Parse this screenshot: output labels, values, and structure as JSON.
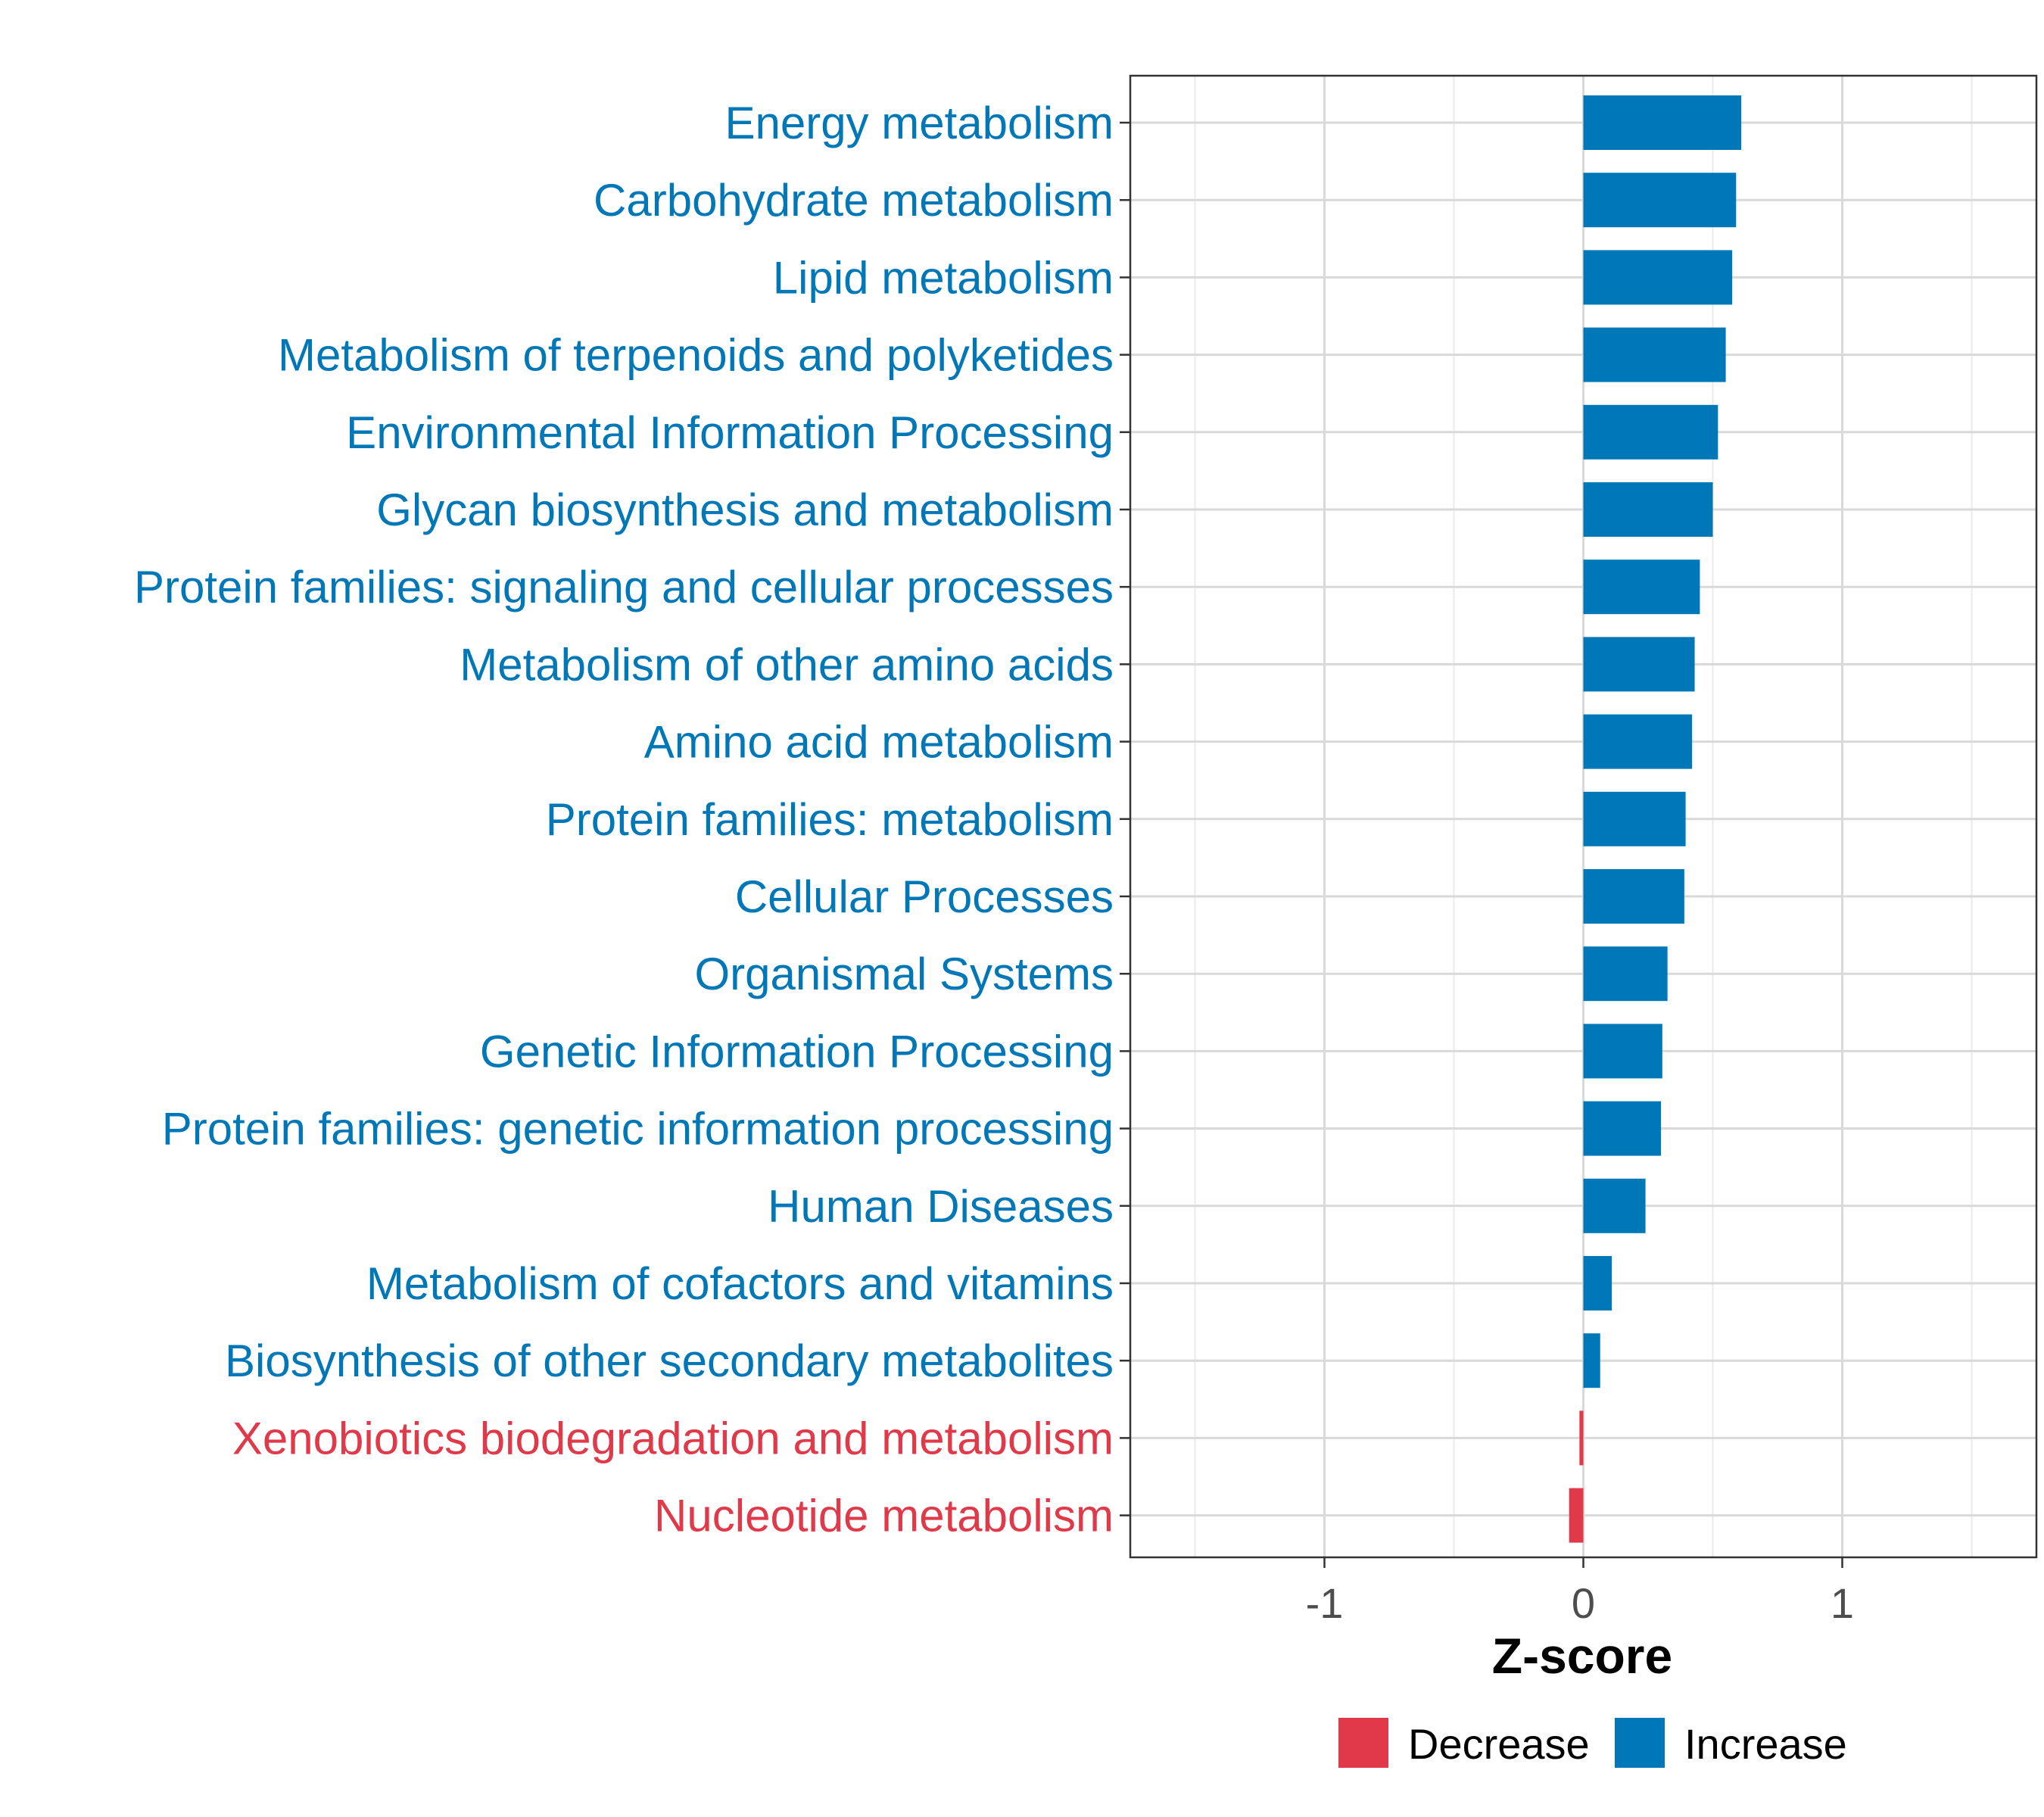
{
  "chart_data": {
    "type": "bar",
    "orientation": "horizontal",
    "title": "",
    "xlabel": "Z-score",
    "ylabel": "",
    "xlim": [
      -1.75,
      1.75
    ],
    "xticks": [
      -1,
      0,
      1
    ],
    "xtick_labels": [
      "-1",
      "0",
      "1"
    ],
    "grid": true,
    "legend_position": "bottom",
    "colors": {
      "Decrease": "#E03A4A",
      "Increase": "#0077B6"
    },
    "legend": [
      {
        "label": "Decrease",
        "color": "#E03A4A"
      },
      {
        "label": "Increase",
        "color": "#0077B6"
      }
    ],
    "categories": [
      "Energy metabolism",
      "Carbohydrate metabolism",
      "Lipid metabolism",
      "Metabolism of terpenoids and polyketides",
      "Environmental Information Processing",
      "Glycan biosynthesis and metabolism",
      "Protein families: signaling and cellular processes",
      "Metabolism of other amino acids",
      "Amino acid metabolism",
      "Protein families: metabolism",
      "Cellular Processes",
      "Organismal Systems",
      "Genetic Information Processing",
      "Protein families: genetic information processing",
      "Human Diseases",
      "Metabolism of cofactors and vitamins",
      "Biosynthesis of other secondary metabolites",
      "Xenobiotics biodegradation and metabolism",
      "Nucleotide metabolism"
    ],
    "values": [
      0.61,
      0.59,
      0.575,
      0.55,
      0.52,
      0.5,
      0.45,
      0.43,
      0.42,
      0.395,
      0.39,
      0.325,
      0.305,
      0.3,
      0.24,
      0.11,
      0.065,
      -0.015,
      -0.055
    ],
    "direction": [
      "Increase",
      "Increase",
      "Increase",
      "Increase",
      "Increase",
      "Increase",
      "Increase",
      "Increase",
      "Increase",
      "Increase",
      "Increase",
      "Increase",
      "Increase",
      "Increase",
      "Increase",
      "Increase",
      "Increase",
      "Decrease",
      "Decrease"
    ]
  }
}
